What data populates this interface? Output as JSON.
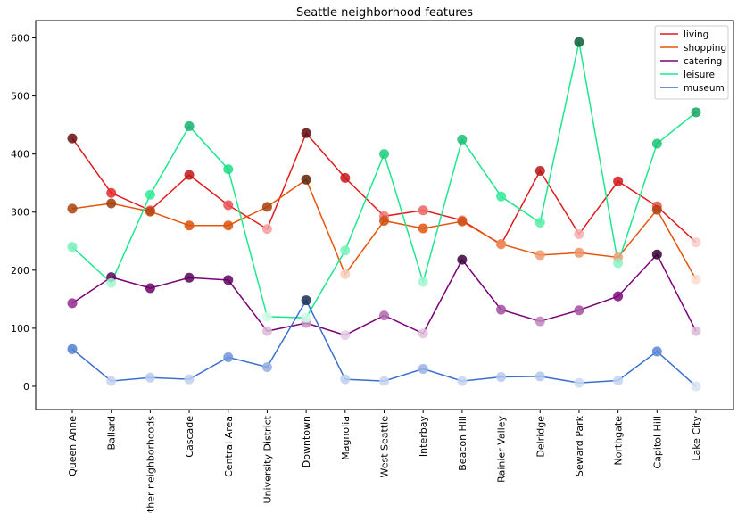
{
  "chart_data": {
    "type": "line",
    "title": "Seattle neighborhood features",
    "xlabel": "",
    "ylabel": "",
    "ylim": [
      -40,
      630
    ],
    "yticks": [
      0,
      100,
      200,
      300,
      400,
      500,
      600
    ],
    "legend_position": "top-right",
    "categories": [
      "Queen Anne",
      "Ballard",
      "Other neighborhoods",
      "Cascade",
      "Central Area",
      "University District",
      "Downtown",
      "Magnolia",
      "West Seattle",
      "Interbay",
      "Beacon Hill",
      "Rainier Valley",
      "Delridge",
      "Seward Park",
      "Northgate",
      "Capitol Hill",
      "Lake City"
    ],
    "series": [
      {
        "name": "living",
        "color": "#e31a1c",
        "values": [
          427,
          333,
          303,
          364,
          312,
          271,
          436,
          359,
          293,
          303,
          286,
          244,
          371,
          262,
          353,
          310,
          248
        ]
      },
      {
        "name": "shopping",
        "color": "#e6550d",
        "values": [
          306,
          315,
          301,
          277,
          277,
          309,
          356,
          193,
          285,
          272,
          284,
          245,
          226,
          230,
          222,
          304,
          184
        ]
      },
      {
        "name": "catering",
        "color": "#7a0177",
        "values": [
          143,
          188,
          169,
          187,
          183,
          95,
          109,
          88,
          122,
          91,
          218,
          132,
          112,
          131,
          155,
          227,
          95
        ]
      },
      {
        "name": "leisure",
        "color": "#1de88c",
        "values": [
          240,
          178,
          330,
          448,
          374,
          120,
          118,
          234,
          400,
          180,
          425,
          327,
          282,
          593,
          212,
          418,
          472
        ]
      },
      {
        "name": "museum",
        "color": "#3a6fcf",
        "values": [
          64,
          9,
          15,
          12,
          50,
          33,
          148,
          12,
          9,
          30,
          9,
          16,
          17,
          6,
          10,
          60,
          0
        ]
      }
    ]
  }
}
